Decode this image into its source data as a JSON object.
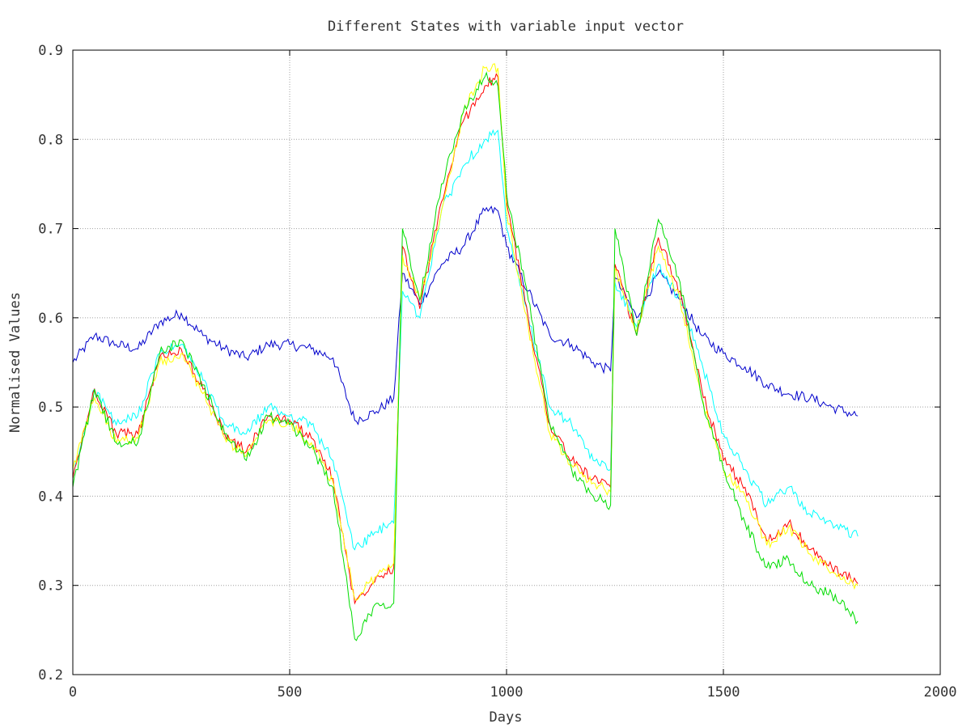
{
  "chart_data": {
    "type": "line",
    "title": "Different States with variable input vector",
    "xlabel": "Days",
    "ylabel": "Normalised Values",
    "xlim": [
      0,
      2000
    ],
    "ylim": [
      0.2,
      0.9
    ],
    "xticks": [
      0,
      500,
      1000,
      1500,
      2000
    ],
    "yticks": [
      0.2,
      0.3,
      0.4,
      0.5,
      0.6,
      0.7,
      0.8,
      0.9
    ],
    "grid": true,
    "legend": "none",
    "x": [
      0,
      50,
      100,
      150,
      200,
      250,
      300,
      350,
      400,
      450,
      500,
      550,
      600,
      650,
      700,
      740,
      760,
      800,
      850,
      900,
      950,
      980,
      1000,
      1050,
      1100,
      1150,
      1200,
      1240,
      1250,
      1300,
      1350,
      1400,
      1450,
      1500,
      1550,
      1600,
      1650,
      1700,
      1750,
      1810
    ],
    "series": [
      {
        "color": "#0000cc",
        "values": [
          0.55,
          0.58,
          0.57,
          0.565,
          0.595,
          0.605,
          0.58,
          0.565,
          0.555,
          0.57,
          0.57,
          0.565,
          0.555,
          0.485,
          0.495,
          0.51,
          0.65,
          0.615,
          0.66,
          0.68,
          0.72,
          0.72,
          0.68,
          0.63,
          0.58,
          0.57,
          0.55,
          0.54,
          0.645,
          0.6,
          0.65,
          0.62,
          0.58,
          0.56,
          0.545,
          0.525,
          0.515,
          0.51,
          0.5,
          0.49
        ]
      },
      {
        "color": "#00ffff",
        "values": [
          0.42,
          0.52,
          0.48,
          0.49,
          0.56,
          0.57,
          0.53,
          0.48,
          0.47,
          0.5,
          0.49,
          0.48,
          0.44,
          0.34,
          0.36,
          0.37,
          0.63,
          0.6,
          0.72,
          0.77,
          0.8,
          0.81,
          0.7,
          0.6,
          0.5,
          0.48,
          0.44,
          0.43,
          0.64,
          0.59,
          0.66,
          0.62,
          0.55,
          0.47,
          0.43,
          0.39,
          0.41,
          0.38,
          0.37,
          0.355
        ]
      },
      {
        "color": "#ff0000",
        "values": [
          0.42,
          0.52,
          0.47,
          0.47,
          0.555,
          0.565,
          0.52,
          0.47,
          0.45,
          0.49,
          0.485,
          0.465,
          0.42,
          0.28,
          0.31,
          0.32,
          0.68,
          0.61,
          0.73,
          0.82,
          0.86,
          0.87,
          0.73,
          0.6,
          0.48,
          0.44,
          0.42,
          0.41,
          0.66,
          0.58,
          0.69,
          0.63,
          0.52,
          0.44,
          0.41,
          0.35,
          0.37,
          0.34,
          0.32,
          0.302
        ]
      },
      {
        "color": "#ffff00",
        "values": [
          0.43,
          0.51,
          0.46,
          0.465,
          0.55,
          0.56,
          0.515,
          0.465,
          0.445,
          0.485,
          0.48,
          0.46,
          0.415,
          0.285,
          0.31,
          0.325,
          0.67,
          0.62,
          0.72,
          0.83,
          0.88,
          0.88,
          0.72,
          0.59,
          0.47,
          0.435,
          0.415,
          0.405,
          0.655,
          0.585,
          0.68,
          0.62,
          0.51,
          0.43,
          0.4,
          0.345,
          0.365,
          0.335,
          0.315,
          0.3
        ]
      },
      {
        "color": "#00dd00",
        "values": [
          0.41,
          0.52,
          0.46,
          0.46,
          0.56,
          0.575,
          0.525,
          0.47,
          0.44,
          0.49,
          0.48,
          0.455,
          0.41,
          0.24,
          0.28,
          0.28,
          0.7,
          0.62,
          0.75,
          0.83,
          0.87,
          0.86,
          0.74,
          0.62,
          0.48,
          0.43,
          0.4,
          0.39,
          0.7,
          0.58,
          0.71,
          0.64,
          0.51,
          0.43,
          0.37,
          0.32,
          0.33,
          0.3,
          0.29,
          0.26
        ]
      }
    ]
  }
}
